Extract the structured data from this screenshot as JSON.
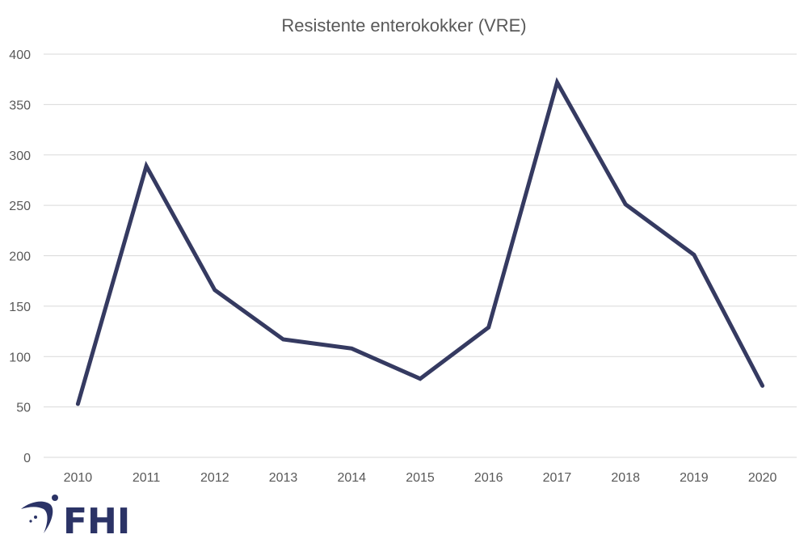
{
  "chart_data": {
    "type": "line",
    "title": "Resistente enterokokker (VRE)",
    "xlabel": "",
    "ylabel": "",
    "categories": [
      "2010",
      "2011",
      "2012",
      "2013",
      "2014",
      "2015",
      "2016",
      "2017",
      "2018",
      "2019",
      "2020"
    ],
    "series": [
      {
        "name": "VRE",
        "values": [
          53,
          289,
          166,
          117,
          108,
          78,
          129,
          372,
          251,
          201,
          71
        ],
        "color": "#353a61"
      }
    ],
    "ylim": [
      0,
      400
    ],
    "yticks": [
      0,
      50,
      100,
      150,
      200,
      250,
      300,
      350,
      400
    ],
    "grid": true,
    "legend": "none"
  },
  "logo": {
    "text": "FHI",
    "color": "#2b3366"
  }
}
